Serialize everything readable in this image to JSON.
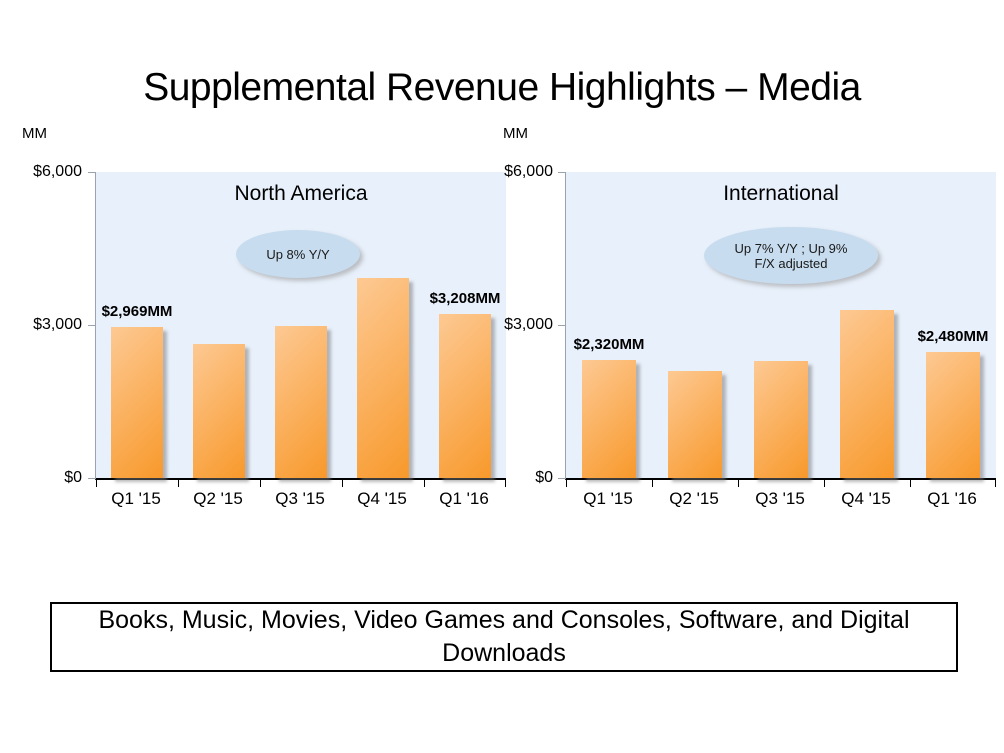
{
  "title": "Supplemental Revenue Highlights – Media",
  "footnote": "Books, Music, Movies, Video Games and Consoles, Software, and Digital Downloads",
  "colors": {
    "plot_bg": "#E8F0FB",
    "callout_bg": "#C7DCEE",
    "bar_light": "#FDC993",
    "bar_dark": "#F8992B"
  },
  "chart_data": [
    {
      "type": "bar",
      "title": "North America",
      "unit_label": "MM",
      "callout": "Up 8% Y/Y",
      "categories": [
        "Q1 '15",
        "Q2 '15",
        "Q3 '15",
        "Q4 '15",
        "Q1 '16"
      ],
      "values": [
        2969,
        2620,
        2972,
        3931,
        3208
      ],
      "point_labels": [
        "$2,969MM",
        null,
        null,
        null,
        "$3,208MM"
      ],
      "xlabel": "",
      "ylabel": "MM",
      "ylim": [
        0,
        6000
      ],
      "yticks": [
        "$6,000",
        "$3,000",
        "$0"
      ],
      "ytick_values": [
        6000,
        3000,
        0
      ],
      "grid": false,
      "legend_position": "none"
    },
    {
      "type": "bar",
      "title": "International",
      "unit_label": "MM",
      "callout": "Up 7% Y/Y ; Up 9% F/X adjusted",
      "categories": [
        "Q1 '15",
        "Q2 '15",
        "Q3 '15",
        "Q4 '15",
        "Q1 '16"
      ],
      "values": [
        2320,
        2095,
        2298,
        3298,
        2480
      ],
      "point_labels": [
        "$2,320MM",
        null,
        null,
        null,
        "$2,480MM"
      ],
      "xlabel": "",
      "ylabel": "MM",
      "ylim": [
        0,
        6000
      ],
      "yticks": [
        "$6,000",
        "$3,000",
        "$0"
      ],
      "ytick_values": [
        6000,
        3000,
        0
      ],
      "grid": false,
      "legend_position": "none"
    }
  ]
}
